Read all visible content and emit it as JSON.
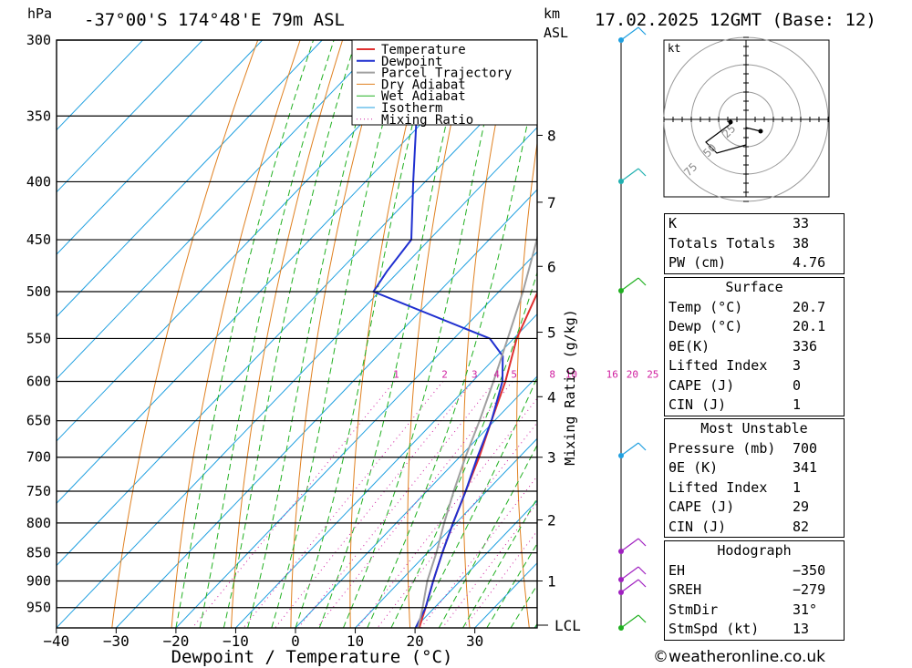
{
  "header": {
    "left_unit": "hPa",
    "location": "-37°00'S  174°48'E  79m  ASL",
    "km_unit": "km",
    "asl_unit": "ASL",
    "datetime": "17.02.2025  12GMT  (Base: 12)"
  },
  "colors": {
    "temperature": "#e03030",
    "dewpoint": "#2030d0",
    "parcel": "#a0a0a0",
    "dry_adiabat": "#e08020",
    "wet_adiabat": "#20b020",
    "isotherm": "#20a0e0",
    "mixing_ratio": "#d020a0"
  },
  "chart_data": {
    "type": "line",
    "title": "",
    "xlabel": "Dewpoint / Temperature (°C)",
    "ylabel": "",
    "x_ticks": [
      "−40",
      "−30",
      "−20",
      "−10",
      "0",
      "10",
      "20",
      "30"
    ],
    "pressure_levels": [
      300,
      350,
      400,
      450,
      500,
      550,
      600,
      650,
      700,
      750,
      800,
      850,
      900,
      950
    ],
    "km_ticks": [
      "1",
      "2",
      "3",
      "4",
      "5",
      "6",
      "7",
      "8"
    ],
    "km_pressures": [
      900,
      795,
      700,
      619,
      543,
      475,
      417,
      364
    ],
    "lcl_label": "LCL",
    "right_axis_label": "Mixing Ratio (g/kg)",
    "mixing_ratio_labels": [
      "1",
      "2",
      "3",
      "4",
      "5",
      "8",
      "10",
      "16",
      "20",
      "25"
    ],
    "legend": [
      "Temperature",
      "Dewpoint",
      "Parcel Trajectory",
      "Dry Adiabat",
      "Wet Adiabat",
      "Isotherm",
      "Mixing Ratio"
    ],
    "series": [
      {
        "name": "Temperature",
        "p": [
          990,
          950,
          900,
          850,
          800,
          750,
          700,
          650,
          600,
          550,
          500,
          450,
          400,
          350,
          300
        ],
        "t": [
          20.7,
          18.5,
          15.5,
          12.5,
          9.5,
          6.5,
          3.3,
          -0.5,
          -4.5,
          -9.5,
          -13.5,
          -20.5,
          -28.5,
          -39,
          -50
        ]
      },
      {
        "name": "Dewpoint",
        "p": [
          990,
          950,
          900,
          850,
          800,
          750,
          700,
          650,
          600,
          570,
          550,
          500,
          480,
          450,
          400,
          350,
          300
        ],
        "t": [
          20.1,
          18.5,
          15.5,
          12.5,
          9.5,
          6.5,
          3.0,
          -0.5,
          -5,
          -9,
          -14,
          -41,
          -42,
          -43,
          -52,
          -62,
          -77
        ]
      },
      {
        "name": "Parcel Trajectory",
        "p": [
          990,
          950,
          900,
          850,
          800,
          750,
          700,
          650,
          600,
          550,
          500,
          450,
          400,
          350,
          300
        ],
        "t": [
          20.5,
          18.0,
          14.5,
          11.5,
          8.0,
          4.5,
          1.0,
          -2.5,
          -6.5,
          -11.0,
          -16.0,
          -22.0,
          -29.5,
          -38.5,
          -49
        ]
      }
    ]
  },
  "hodograph": {
    "unit": "kt",
    "ring_labels": [
      "25",
      "50",
      "75"
    ]
  },
  "indices": [
    {
      "label": "K",
      "value": "33"
    },
    {
      "label": "Totals Totals",
      "value": "38"
    },
    {
      "label": "PW (cm)",
      "value": "4.76"
    }
  ],
  "surface": {
    "title": "Surface",
    "rows": [
      {
        "label": "Temp (°C)",
        "value": "20.7"
      },
      {
        "label": "Dewp (°C)",
        "value": "20.1"
      },
      {
        "label": "θE(K)",
        "value": "336"
      },
      {
        "label": "Lifted Index",
        "value": "3"
      },
      {
        "label": "CAPE (J)",
        "value": "0"
      },
      {
        "label": "CIN (J)",
        "value": "1"
      }
    ]
  },
  "most_unstable": {
    "title": "Most Unstable",
    "rows": [
      {
        "label": "Pressure (mb)",
        "value": "700"
      },
      {
        "label": "θE (K)",
        "value": "341"
      },
      {
        "label": "Lifted Index",
        "value": "1"
      },
      {
        "label": "CAPE (J)",
        "value": "29"
      },
      {
        "label": "CIN (J)",
        "value": "82"
      }
    ]
  },
  "hodograph_table": {
    "title": "Hodograph",
    "rows": [
      {
        "label": "EH",
        "value": "−350"
      },
      {
        "label": "SREH",
        "value": "−279"
      },
      {
        "label": "StmDir",
        "value": "31°"
      },
      {
        "label": "StmSpd (kt)",
        "value": "13"
      }
    ]
  },
  "footer": {
    "copyright": "©weatheronline.co.uk"
  }
}
